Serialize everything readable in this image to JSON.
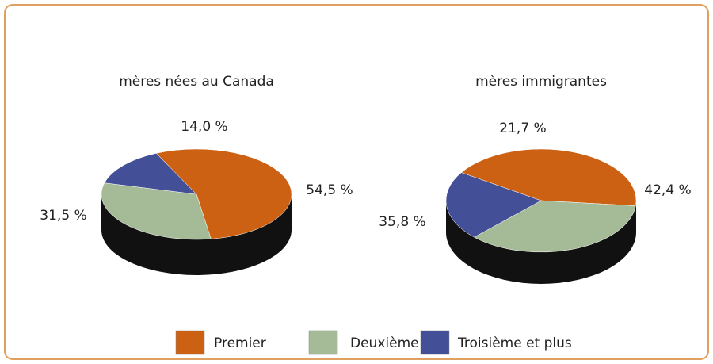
{
  "chart_data": [
    {
      "type": "pie",
      "title": "mères nées au Canada",
      "categories": [
        "Premier",
        "Deuxième",
        "Troisième et plus"
      ],
      "values": [
        54.5,
        31.5,
        14.0
      ],
      "value_labels": [
        "54,5 %",
        "31,5 %",
        "14,0 %"
      ],
      "colors": [
        "#cc6114",
        "#a5bb98",
        "#434f97"
      ]
    },
    {
      "type": "pie",
      "title": "mères immigrantes",
      "categories": [
        "Premier",
        "Deuxième",
        "Troisième et plus"
      ],
      "values": [
        42.4,
        35.8,
        21.7
      ],
      "value_labels": [
        "42,4 %",
        "35,8 %",
        "21,7 %"
      ],
      "colors": [
        "#cc6114",
        "#a5bb98",
        "#434f97"
      ]
    }
  ]
}
